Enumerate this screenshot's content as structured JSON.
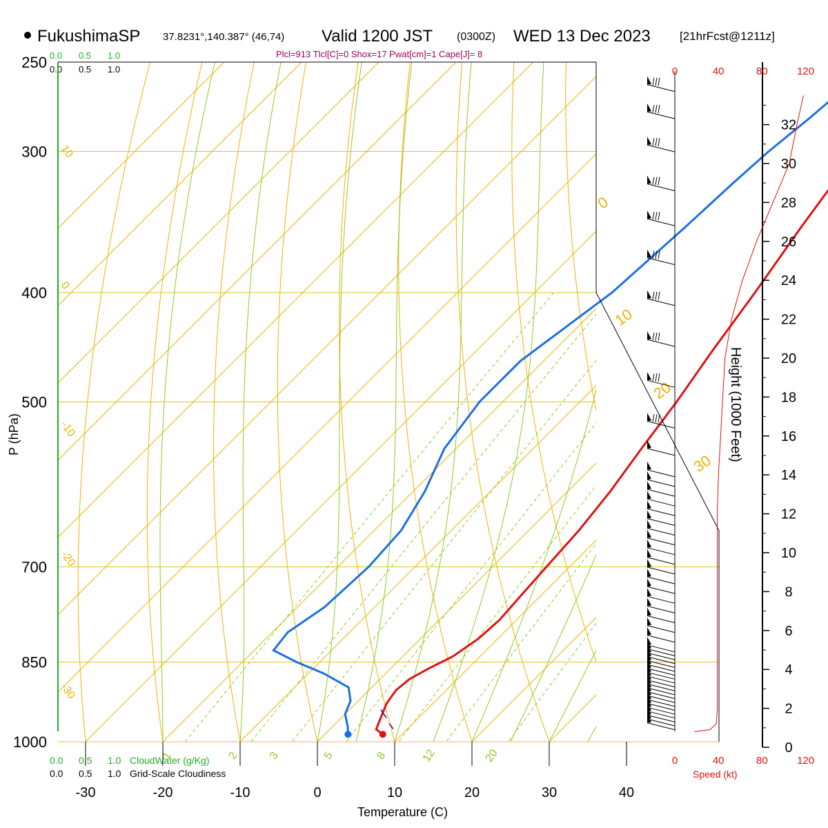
{
  "header": {
    "station": "FukushimaSP",
    "coords": "37.8231°,140.387° (46,74)",
    "valid": "Valid 1200 JST",
    "zulu": "(0300Z)",
    "date": "WED 13 Dec 2023",
    "forecast": "[21hrFcst@1211z]",
    "indices": "Plcl=913 Tlcl[C]=0 Shox=17 Pwat[cm]=1 Cape[J]= 8"
  },
  "colors": {
    "temperature": "#e01010",
    "dewpoint": "#1a6fe0",
    "isobar": "#e8c020",
    "isotherm": "#f0b000",
    "dry_adiabat": "#f0b000",
    "moist_adiabat": "#90c820",
    "mixing_ratio": "#90c820",
    "speed": "#e01010",
    "cloud": "#20b020"
  },
  "labels": {
    "ylabel": "P (hPa)",
    "xlabel": "Temperature (C)",
    "height_label": "Height (1000 Feet)",
    "speed_label": "Speed (kt)",
    "cloudwater_label": "CloudWater (g/Kg)",
    "cloudiness_label": "Grid-Scale Cloudiness",
    "cloud_scale_green": [
      "0.0",
      "0.5",
      "1.0"
    ],
    "cloud_scale_black": [
      "0.0",
      "0.5",
      "1.0"
    ]
  },
  "chart_data": {
    "type": "line",
    "pressure_ticks": [
      250,
      300,
      400,
      500,
      700,
      850,
      1000
    ],
    "temperature_ticks": [
      -30,
      -20,
      -10,
      0,
      10,
      20,
      30,
      40
    ],
    "height_ticks": [
      0,
      2,
      4,
      6,
      8,
      10,
      12,
      14,
      16,
      18,
      20,
      22,
      24,
      26,
      28,
      30,
      32
    ],
    "speed_ticks": [
      0,
      40,
      80,
      120
    ],
    "dry_adiabat_labels": [
      "10",
      "0",
      "-10",
      "-20",
      "-30"
    ],
    "moist_adiabat_labels": [
      "0",
      "10",
      "20",
      "30"
    ],
    "mixing_ratio_labels": [
      "1",
      "2",
      "3",
      "5",
      "8",
      "12",
      "20"
    ],
    "temperature_profile": [
      {
        "p": 985,
        "t": 7.5
      },
      {
        "p": 975,
        "t": 6.0
      },
      {
        "p": 955,
        "t": 5.2
      },
      {
        "p": 925,
        "t": 4.0
      },
      {
        "p": 900,
        "t": 3.5
      },
      {
        "p": 880,
        "t": 3.8
      },
      {
        "p": 860,
        "t": 5.0
      },
      {
        "p": 840,
        "t": 6.5
      },
      {
        "p": 810,
        "t": 7.5
      },
      {
        "p": 780,
        "t": 7.8
      },
      {
        "p": 750,
        "t": 7.5
      },
      {
        "p": 700,
        "t": 7.0
      },
      {
        "p": 650,
        "t": 6.5
      },
      {
        "p": 600,
        "t": 5.5
      },
      {
        "p": 550,
        "t": 4.0
      },
      {
        "p": 500,
        "t": 2.5
      },
      {
        "p": 450,
        "t": 0.5
      },
      {
        "p": 400,
        "t": -1.5
      },
      {
        "p": 350,
        "t": -4.0
      },
      {
        "p": 320,
        "t": -5.5
      },
      {
        "p": 300,
        "t": -6.0
      },
      {
        "p": 280,
        "t": -6.2
      },
      {
        "p": 260,
        "t": -5.8
      }
    ],
    "dewpoint_profile": [
      {
        "p": 985,
        "t": 3.0
      },
      {
        "p": 970,
        "t": 2.0
      },
      {
        "p": 945,
        "t": 0.0
      },
      {
        "p": 920,
        "t": -1.0
      },
      {
        "p": 895,
        "t": -3.0
      },
      {
        "p": 870,
        "t": -8.0
      },
      {
        "p": 850,
        "t": -13.0
      },
      {
        "p": 830,
        "t": -17.5
      },
      {
        "p": 800,
        "t": -18.0
      },
      {
        "p": 760,
        "t": -16.5
      },
      {
        "p": 700,
        "t": -16.0
      },
      {
        "p": 650,
        "t": -16.5
      },
      {
        "p": 600,
        "t": -18.5
      },
      {
        "p": 550,
        "t": -21.5
      },
      {
        "p": 500,
        "t": -23.0
      },
      {
        "p": 460,
        "t": -23.0
      },
      {
        "p": 400,
        "t": -20.0
      },
      {
        "p": 350,
        "t": -19.0
      },
      {
        "p": 320,
        "t": -18.5
      },
      {
        "p": 300,
        "t": -18.0
      },
      {
        "p": 280,
        "t": -17.0
      },
      {
        "p": 255,
        "t": -16.0
      }
    ],
    "parcel_start": {
      "p": 985,
      "t": 7.5
    },
    "dewpoint_start": {
      "p": 985,
      "t": 3.0
    },
    "wind_speed_profile": [
      {
        "h": 0.8,
        "s": 18
      },
      {
        "h": 0.9,
        "s": 32
      },
      {
        "h": 1.2,
        "s": 38
      },
      {
        "h": 2.0,
        "s": 39
      },
      {
        "h": 4.0,
        "s": 39
      },
      {
        "h": 6.0,
        "s": 39
      },
      {
        "h": 8.0,
        "s": 39
      },
      {
        "h": 10.0,
        "s": 39
      },
      {
        "h": 12.0,
        "s": 39
      },
      {
        "h": 14.0,
        "s": 40
      },
      {
        "h": 16.0,
        "s": 42
      },
      {
        "h": 18.0,
        "s": 44
      },
      {
        "h": 20.0,
        "s": 46
      },
      {
        "h": 22.0,
        "s": 52
      },
      {
        "h": 24.0,
        "s": 62
      },
      {
        "h": 26.0,
        "s": 75
      },
      {
        "h": 28.0,
        "s": 90
      },
      {
        "h": 30.0,
        "s": 105
      },
      {
        "h": 32.0,
        "s": 112
      },
      {
        "h": 33.5,
        "s": 118
      }
    ]
  }
}
